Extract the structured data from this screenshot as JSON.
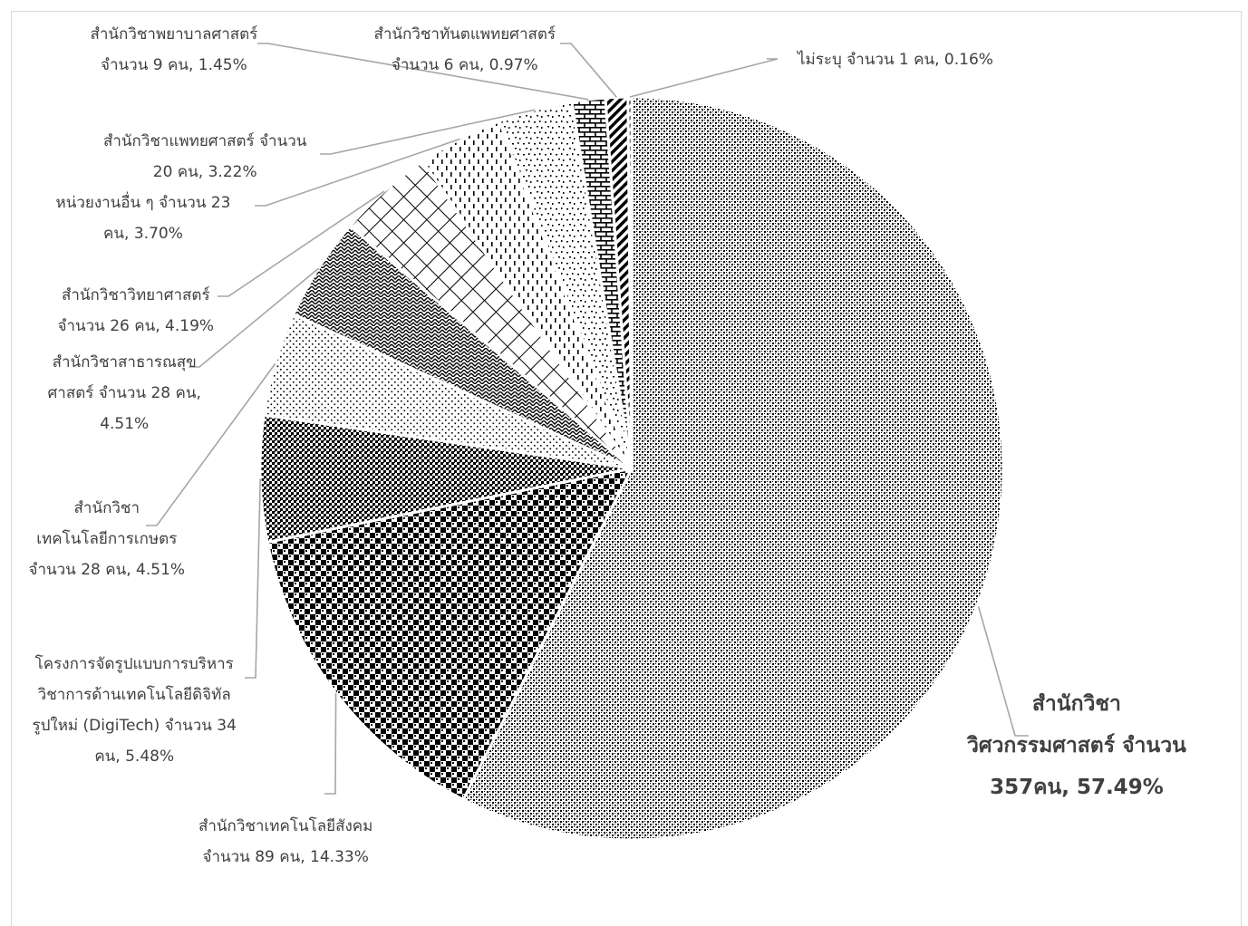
{
  "chart_data": {
    "type": "pie",
    "title": "",
    "legend": "none",
    "start_angle_deg": 0,
    "direction": "clockwise",
    "slices": [
      {
        "name": "สำนักวิชาวิศวกรรมศาสตร์",
        "count": 357,
        "percent": 57.49,
        "pattern": "dots-dense",
        "label_lines": [
          "สำนักวิชา",
          "วิศวกรรมศาสตร์ จำนวน",
          "357คน, 57.49%"
        ]
      },
      {
        "name": "สำนักวิชาเทคโนโลยีสังคม",
        "count": 89,
        "percent": 14.33,
        "pattern": "checker",
        "label_lines": [
          "สำนักวิชาเทคโนโลยีสังคม",
          "จำนวน 89 คน, 14.33%"
        ]
      },
      {
        "name": "โครงการจัดรูปแบบการบริหารวิชาการด้านเทคโนโลยีดิจิทัลรูปใหม่ (DigiTech)",
        "count": 34,
        "percent": 5.48,
        "pattern": "dark-dots",
        "label_lines": [
          "โครงการจัดรูปแบบการบริหาร",
          "วิชาการด้านเทคโนโลยีดิจิทัล",
          "รูปใหม่ (DigiTech) จำนวน 34",
          "คน, 5.48%"
        ]
      },
      {
        "name": "สำนักวิชาเทคโนโลยีการเกษตร",
        "count": 28,
        "percent": 4.51,
        "pattern": "sparse-dots",
        "label_lines": [
          "สำนักวิชา",
          "เทคโนโลยีการเกษตร",
          "จำนวน 28 คน, 4.51%"
        ]
      },
      {
        "name": "สำนักวิชาสาธารณสุขศาสตร์",
        "count": 28,
        "percent": 4.51,
        "pattern": "weave",
        "label_lines": [
          "สำนักวิชาสาธารณสุข",
          "ศาสตร์ จำนวน 28 คน,",
          "4.51%"
        ]
      },
      {
        "name": "สำนักวิชาวิทยาศาสตร์",
        "count": 26,
        "percent": 4.19,
        "pattern": "grid",
        "label_lines": [
          "สำนักวิชาวิทยาศาสตร์",
          "จำนวน 26 คน, 4.19%"
        ]
      },
      {
        "name": "หน่วยงานอื่น ๆ",
        "count": 23,
        "percent": 3.7,
        "pattern": "dashes",
        "label_lines": [
          "หน่วยงานอื่น ๆ  จำนวน 23",
          "คน, 3.70%"
        ]
      },
      {
        "name": "สำนักวิชาแพทยศาสตร์",
        "count": 20,
        "percent": 3.22,
        "pattern": "confetti",
        "label_lines": [
          "สำนักวิชาแพทยศาสตร์ จำนวน",
          "20 คน, 3.22%"
        ]
      },
      {
        "name": "สำนักวิชาพยาบาลศาสตร์",
        "count": 9,
        "percent": 1.45,
        "pattern": "brick",
        "label_lines": [
          "สำนักวิชาพยาบาลศาสตร์",
          "จำนวน 9 คน, 1.45%"
        ]
      },
      {
        "name": "สำนักวิชาทันตแพทยศาสตร์",
        "count": 6,
        "percent": 0.97,
        "pattern": "diagonal",
        "label_lines": [
          "สำนักวิชาทันตแพทยศาสตร์",
          "จำนวน 6 คน, 0.97%"
        ]
      },
      {
        "name": "ไม่ระบุ",
        "count": 1,
        "percent": 0.16,
        "pattern": "horizontal",
        "label_lines": [
          "ไม่ระบุ จำนวน 1 คน, 0.16%"
        ]
      }
    ]
  },
  "colors": {
    "fill": "#000000",
    "background": "#ffffff",
    "leader": "#a6a6a6",
    "text": "#404040",
    "frame": "#d9d9d9"
  }
}
